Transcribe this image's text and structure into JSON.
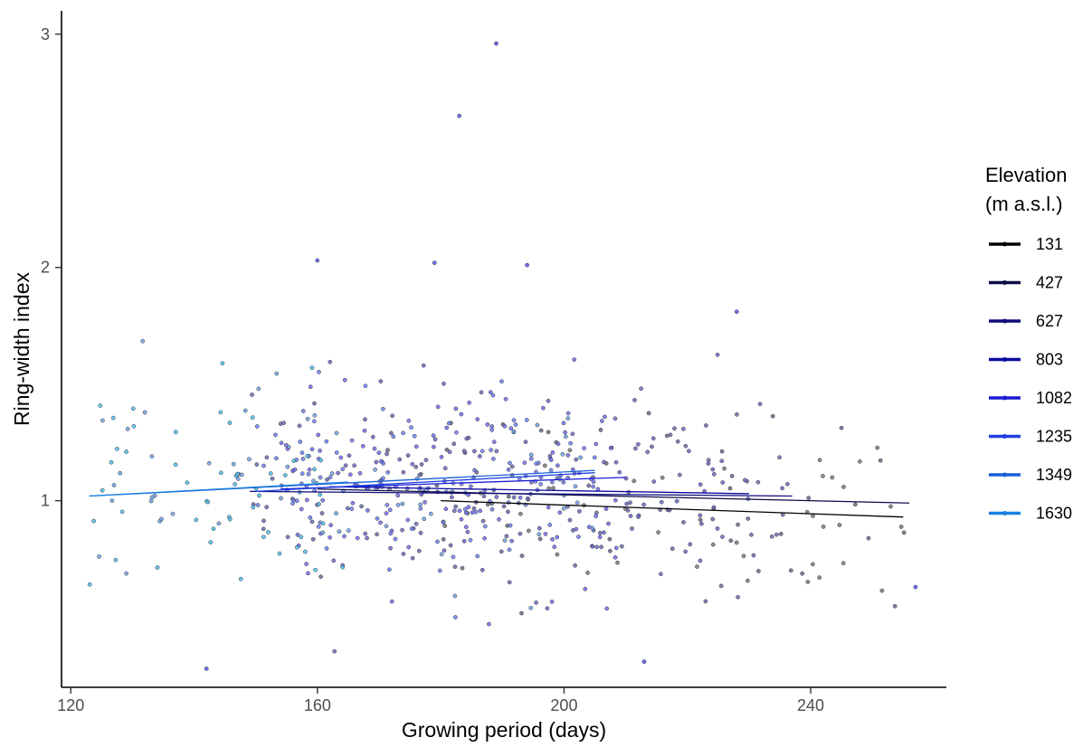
{
  "chart_data": {
    "type": "scatter",
    "title": "",
    "xlabel": "Growing period (days)",
    "ylabel": "Ring-width index",
    "xlim": [
      118.5,
      262
    ],
    "ylim": [
      0.2,
      3.1
    ],
    "xticks": [
      120,
      160,
      200,
      240
    ],
    "yticks": [
      1,
      2,
      3
    ],
    "grid": false,
    "legend": {
      "title_line1": "Elevation",
      "title_line2": "(m a.s.l.)",
      "position": "right",
      "entries": [
        "131",
        "427",
        "627",
        "803",
        "1082",
        "1235",
        "1349",
        "1630"
      ]
    },
    "colors": {
      "131": "#000000",
      "427": "#0b0b45",
      "627": "#0d0d78",
      "803": "#0b0ba0",
      "1082": "#1a1ad6",
      "1235": "#1f3fe0",
      "1349": "#1a5fd8",
      "1630": "#1a80e0"
    },
    "point_colors": {
      "131": "#7a7a7a",
      "427": "#6a6a8a",
      "627": "#6b6bb0",
      "803": "#6a6ac8",
      "1082": "#6e6ef0",
      "1235": "#7080f5",
      "1349": "#6fa5e8",
      "1630": "#4fc0ec"
    },
    "series": [
      {
        "name": "131",
        "x_range": [
          180,
          255
        ],
        "trend": [
          [
            180,
            1.0
          ],
          [
            255,
            0.93
          ]
        ],
        "y_mean": 0.97,
        "y_sd": 0.2,
        "n": 40
      },
      {
        "name": "427",
        "x_range": [
          160,
          256
        ],
        "trend": [
          [
            160,
            1.05
          ],
          [
            256,
            0.99
          ]
        ],
        "y_mean": 1.0,
        "y_sd": 0.2,
        "n": 50
      },
      {
        "name": "627",
        "x_range": [
          149,
          237
        ],
        "trend": [
          [
            149,
            1.04
          ],
          [
            237,
            1.02
          ]
        ],
        "y_mean": 1.03,
        "y_sd": 0.2,
        "n": 90
      },
      {
        "name": "803",
        "x_range": [
          162,
          230
        ],
        "trend": [
          [
            162,
            1.06
          ],
          [
            230,
            1.03
          ]
        ],
        "y_mean": 1.05,
        "y_sd": 0.2,
        "n": 110
      },
      {
        "name": "1082",
        "x_range": [
          154,
          210
        ],
        "trend": [
          [
            154,
            1.05
          ],
          [
            210,
            1.1
          ]
        ],
        "y_mean": 1.05,
        "y_sd": 0.2,
        "n": 130
      },
      {
        "name": "1235",
        "x_range": [
          150,
          205
        ],
        "trend": [
          [
            150,
            1.04
          ],
          [
            205,
            1.12
          ]
        ],
        "y_mean": 1.07,
        "y_sd": 0.2,
        "n": 110
      },
      {
        "name": "1349",
        "x_range": [
          123,
          205
        ],
        "trend": [
          [
            123,
            1.02
          ],
          [
            205,
            1.13
          ]
        ],
        "y_mean": 1.07,
        "y_sd": 0.2,
        "n": 70
      },
      {
        "name": "1630",
        "x_range": [
          123,
          165
        ],
        "trend": [
          [
            123,
            1.02
          ],
          [
            165,
            1.08
          ]
        ],
        "y_mean": 1.04,
        "y_sd": 0.22,
        "n": 55
      }
    ],
    "notable_points": [
      {
        "x": 189,
        "y": 2.96
      },
      {
        "x": 183,
        "y": 2.65
      },
      {
        "x": 160,
        "y": 2.03
      },
      {
        "x": 179,
        "y": 2.02
      },
      {
        "x": 194,
        "y": 2.01
      },
      {
        "x": 142,
        "y": 0.28
      },
      {
        "x": 213,
        "y": 0.31
      },
      {
        "x": 257,
        "y": 0.63
      },
      {
        "x": 228,
        "y": 1.81
      }
    ]
  }
}
